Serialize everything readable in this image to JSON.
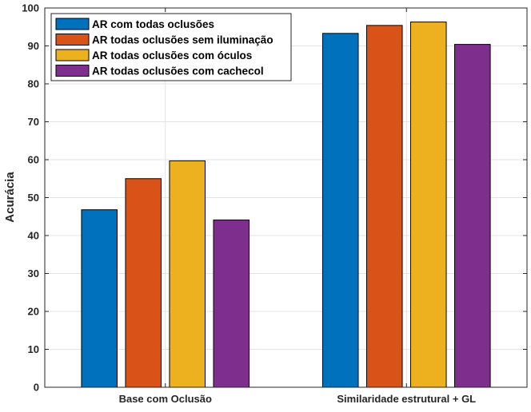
{
  "chart_data": {
    "type": "bar",
    "categories": [
      "Base com Oclusão",
      "Similaridade estrutural + GL"
    ],
    "series": [
      {
        "name": "AR com todas oclusões",
        "values": [
          46.8,
          93.3
        ],
        "color": "#0072BD"
      },
      {
        "name": "AR todas oclusões sem iluminação",
        "values": [
          55.0,
          95.4
        ],
        "color": "#D95319"
      },
      {
        "name": "AR todas oclusões com óculos",
        "values": [
          59.7,
          96.3
        ],
        "color": "#EDB120"
      },
      {
        "name": "AR todas oclusões com cachecol",
        "values": [
          44.1,
          90.4
        ],
        "color": "#7E2F8E"
      }
    ],
    "title": "",
    "xlabel": "",
    "ylabel": "Acurácia",
    "ylim": [
      0,
      100
    ],
    "yticks": [
      0,
      10,
      20,
      30,
      40,
      50,
      60,
      70,
      80,
      90,
      100
    ],
    "grid": true,
    "legend_position": "top-left"
  }
}
